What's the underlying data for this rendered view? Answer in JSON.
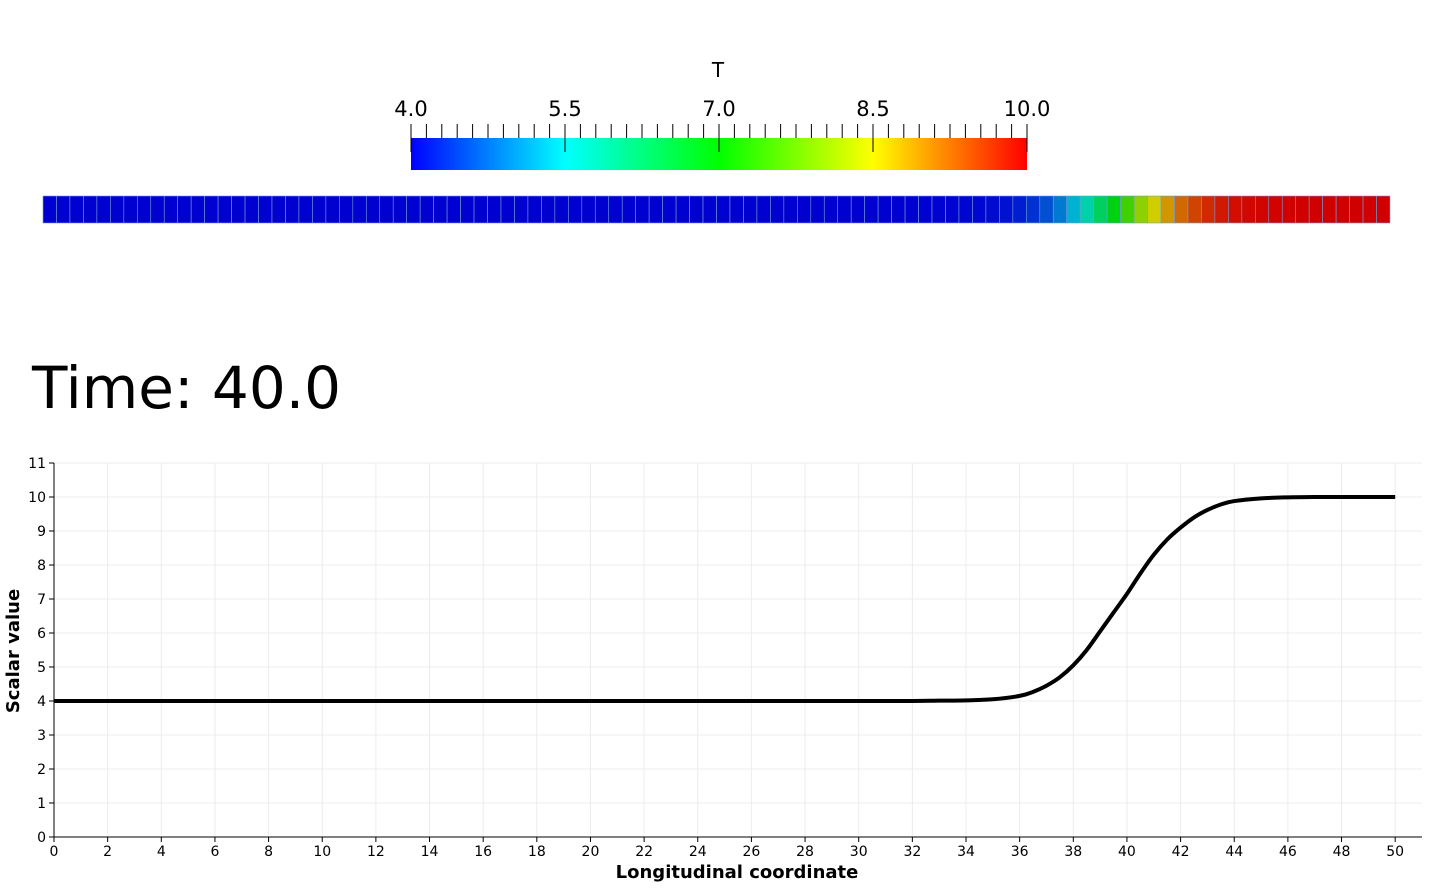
{
  "colorbar": {
    "title": "T",
    "range": [
      4.0,
      10.0
    ],
    "tick_labels": [
      "4.0",
      "5.5",
      "7.0",
      "8.5",
      "10.0"
    ],
    "colormap": [
      "#0000ff",
      "#00ffff",
      "#00ff00",
      "#ffff00",
      "#ff0000"
    ]
  },
  "time_label": "Time: 40.0",
  "chart_data": {
    "type": "line",
    "xlabel": "Longitudinal coordinate",
    "ylabel": "Scalar value",
    "xlim": [
      0,
      51
    ],
    "ylim": [
      0,
      11
    ],
    "x_ticks": [
      0,
      2,
      4,
      6,
      8,
      10,
      12,
      14,
      16,
      18,
      20,
      22,
      24,
      26,
      28,
      30,
      32,
      34,
      36,
      38,
      40,
      42,
      44,
      46,
      48,
      50
    ],
    "y_ticks": [
      0,
      1,
      2,
      3,
      4,
      5,
      6,
      7,
      8,
      9,
      10,
      11
    ],
    "grid": true,
    "series": [
      {
        "color": "#000000",
        "x": [
          0,
          2,
          4,
          6,
          8,
          10,
          12,
          14,
          16,
          18,
          20,
          22,
          24,
          26,
          28,
          30,
          32,
          33,
          34,
          35,
          36,
          36.5,
          37,
          37.5,
          38,
          38.5,
          39,
          39.5,
          40,
          40.5,
          41,
          41.5,
          42,
          42.5,
          43,
          43.5,
          44,
          45,
          46,
          47,
          48,
          50
        ],
        "y": [
          4,
          4,
          4,
          4,
          4,
          4,
          4,
          4,
          4,
          4,
          4,
          4,
          4,
          4,
          4,
          4,
          4,
          4.01,
          4.02,
          4.05,
          4.15,
          4.27,
          4.45,
          4.7,
          5.05,
          5.5,
          6.05,
          6.6,
          7.15,
          7.75,
          8.3,
          8.75,
          9.1,
          9.4,
          9.62,
          9.78,
          9.88,
          9.96,
          9.99,
          10,
          10,
          10
        ]
      }
    ]
  }
}
